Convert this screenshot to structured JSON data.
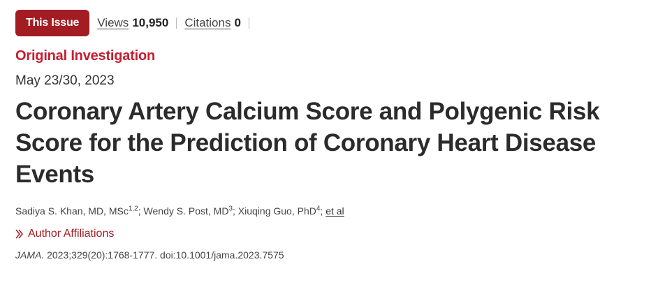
{
  "toolbar": {
    "issue_label": "This Issue",
    "views_label": "Views",
    "views_count": "10,950",
    "citations_label": "Citations",
    "citations_count": "0"
  },
  "article": {
    "section": "Original Investigation",
    "date": "May 23/30, 2023",
    "title": "Coronary Artery Calcium Score and Polygenic Risk Score for the Prediction of Coronary Heart Disease Events",
    "authors": [
      {
        "name": "Sadiya S. Khan, MD, MSc",
        "sup": "1,2"
      },
      {
        "name": "Wendy S. Post, MD",
        "sup": "3"
      },
      {
        "name": "Xiuqing Guo, PhD",
        "sup": "4"
      }
    ],
    "author_sep": ";",
    "et_al": "et al",
    "affiliations_label": "Author Affiliations",
    "citation_journal": "JAMA.",
    "citation_details": "2023;329(20):1768-1777. doi:10.1001/jama.2023.7575"
  },
  "colors": {
    "issue_button_bg": "#a31c24",
    "section_red": "#c41e30",
    "title_text": "#2b2b2b"
  },
  "icons": {
    "affiliations": "chevron-right-double-icon"
  }
}
